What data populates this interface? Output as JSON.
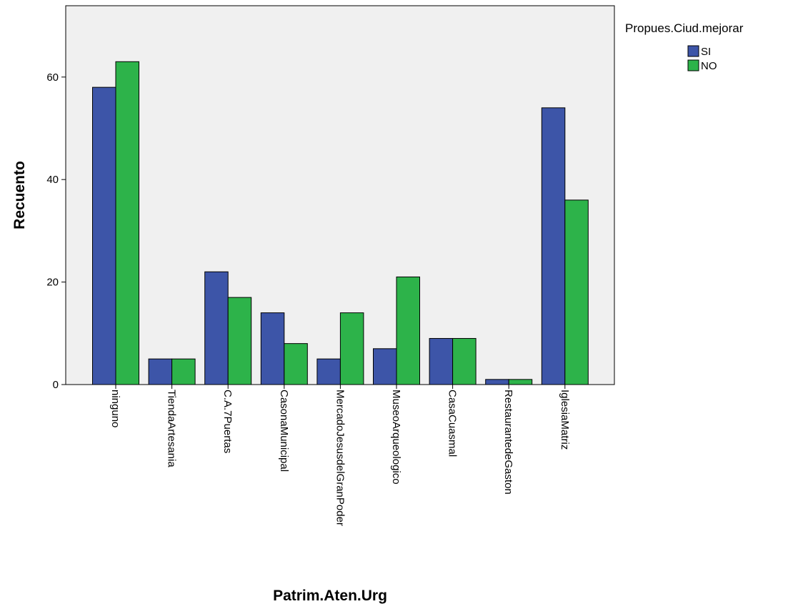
{
  "chart_data": {
    "type": "bar",
    "title": "",
    "xlabel": "Patrim.Aten.Urg",
    "ylabel": "Recuento",
    "ylim": [
      0,
      75
    ],
    "yticks": [
      0,
      20,
      40,
      60
    ],
    "grid": false,
    "legend_position": "top-right",
    "legend_title": "Propues.Ciud.mejorar",
    "categories": [
      "ninguno",
      "TiendaArtesania",
      "C.A.7Puertas",
      "CasonaMunicipal",
      "MercadoJesusdelGranPoder",
      "MuseoArqueologico",
      "CasaCuasmal",
      "RestaurantedeGaston",
      "IglesiaMatriz"
    ],
    "series": [
      {
        "name": "SI",
        "color": "#3d55a8",
        "values": [
          58,
          5,
          22,
          14,
          5,
          7,
          9,
          1,
          54
        ]
      },
      {
        "name": "NO",
        "color": "#2db34a",
        "values": [
          63,
          5,
          17,
          8,
          14,
          21,
          9,
          1,
          36
        ]
      }
    ],
    "plot_background": "#f0f0f0"
  }
}
